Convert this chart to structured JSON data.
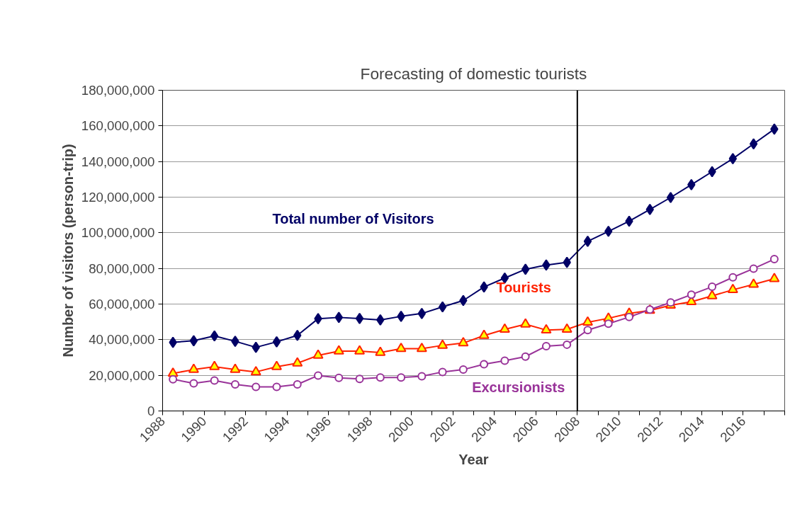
{
  "chart_data": {
    "type": "line",
    "title": "Forecasting of domestic tourists",
    "xlabel": "Year",
    "ylabel": "Number of visitors (person-trip)",
    "x": [
      1988.5,
      1989.5,
      1990.5,
      1991.5,
      1992.5,
      1993.5,
      1994.5,
      1995.5,
      1996.5,
      1997.5,
      1998.5,
      1999.5,
      2000.5,
      2001.5,
      2002.5,
      2003.5,
      2004.5,
      2005.5,
      2006.5,
      2007.5,
      2008.5,
      2009.5,
      2010.5,
      2011.5,
      2012.5,
      2013.5,
      2014.5,
      2015.5,
      2016.5,
      2017.5
    ],
    "series": [
      {
        "name": "Total number of Visitors",
        "color": "#000066",
        "marker": "diamond",
        "values": [
          38500000,
          39400000,
          42100000,
          39100000,
          35700000,
          38800000,
          42400000,
          51800000,
          52500000,
          51900000,
          51100000,
          53100000,
          54700000,
          58400000,
          62000000,
          69600000,
          74600000,
          79500000,
          81900000,
          83400000,
          95200000,
          100800000,
          106500000,
          113100000,
          119800000,
          127000000,
          134300000,
          141600000,
          149900000,
          158200000
        ]
      },
      {
        "name": "Tourists",
        "color": "#ff2200",
        "marker": "triangle",
        "values": [
          21100000,
          23200000,
          24800000,
          23200000,
          21900000,
          24800000,
          26800000,
          31200000,
          33600000,
          33600000,
          32800000,
          35000000,
          35000000,
          36800000,
          38100000,
          42300000,
          45800000,
          48700000,
          45400000,
          45800000,
          49800000,
          52000000,
          54700000,
          56400000,
          59300000,
          61300000,
          64600000,
          68000000,
          71000000,
          74200000
        ]
      },
      {
        "name": "Excursionists",
        "color": "#993399",
        "marker": "circle",
        "values": [
          17800000,
          15500000,
          17100000,
          14900000,
          13500000,
          13500000,
          14900000,
          19900000,
          18600000,
          18000000,
          18800000,
          18800000,
          19500000,
          21900000,
          23200000,
          26200000,
          28200000,
          30500000,
          36400000,
          37200000,
          45400000,
          49000000,
          52700000,
          56900000,
          60900000,
          65300000,
          69700000,
          75000000,
          79900000,
          85200000
        ]
      }
    ],
    "ref_lines": [
      {
        "axis": "x",
        "value": 2008,
        "color": "#000000"
      }
    ],
    "xlim": [
      1988,
      2018
    ],
    "xticks": [
      1988,
      {
        "value": 1989,
        "label": null
      },
      1990,
      {
        "value": 1991,
        "label": null
      },
      1992,
      {
        "value": 1993,
        "label": null
      },
      1994,
      {
        "value": 1995,
        "label": null
      },
      1996,
      {
        "value": 1997,
        "label": null
      },
      1998,
      {
        "value": 1999,
        "label": null
      },
      2000,
      {
        "value": 2001,
        "label": null
      },
      2002,
      {
        "value": 2003,
        "label": null
      },
      2004,
      {
        "value": 2005,
        "label": null
      },
      2006,
      {
        "value": 2007,
        "label": null
      },
      2008,
      {
        "value": 2009,
        "label": null
      },
      2010,
      {
        "value": 2011,
        "label": null
      },
      2012,
      {
        "value": 2013,
        "label": null
      },
      2014,
      {
        "value": 2015,
        "label": null
      },
      2016,
      {
        "value": 2017,
        "label": null
      },
      {
        "value": 2018,
        "label": null
      }
    ],
    "ylim": [
      0,
      180000000
    ],
    "yticks": [
      0,
      {
        "value": 20000000,
        "label": "20,000,000"
      },
      {
        "value": 40000000,
        "label": "40,000,000"
      },
      {
        "value": 60000000,
        "label": "60,000,000"
      },
      {
        "value": 80000000,
        "label": "80,000,000"
      },
      {
        "value": 100000000,
        "label": "100,000,000"
      },
      {
        "value": 120000000,
        "label": "120,000,000"
      },
      {
        "value": 140000000,
        "label": "140,000,000"
      },
      {
        "value": 160000000,
        "label": "160,000,000"
      },
      {
        "value": 180000000,
        "label": "180,000,000"
      }
    ],
    "grid": "y",
    "legend": false,
    "line_style": "solid"
  }
}
